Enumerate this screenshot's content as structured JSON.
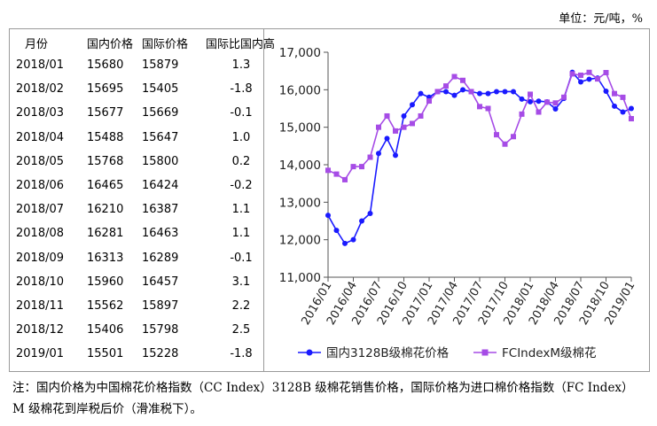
{
  "unit_label": "单位：元/吨，%",
  "table": {
    "headers": [
      "月份",
      "国内价格",
      "国际价格",
      "国际比国内高"
    ],
    "rows": [
      [
        "2018/01",
        "15680",
        "15879",
        "1.3"
      ],
      [
        "2018/02",
        "15695",
        "15405",
        "-1.8"
      ],
      [
        "2018/03",
        "15677",
        "15669",
        "-0.1"
      ],
      [
        "2018/04",
        "15488",
        "15647",
        "1.0"
      ],
      [
        "2018/05",
        "15768",
        "15800",
        "0.2"
      ],
      [
        "2018/06",
        "16465",
        "16424",
        "-0.2"
      ],
      [
        "2018/07",
        "16210",
        "16387",
        "1.1"
      ],
      [
        "2018/08",
        "16281",
        "16463",
        "1.1"
      ],
      [
        "2018/09",
        "16313",
        "16289",
        "-0.1"
      ],
      [
        "2018/10",
        "15960",
        "16457",
        "3.1"
      ],
      [
        "2018/11",
        "15562",
        "15897",
        "2.2"
      ],
      [
        "2018/12",
        "15406",
        "15798",
        "2.5"
      ],
      [
        "2019/01",
        "15501",
        "15228",
        "-1.8"
      ]
    ]
  },
  "note": "注：国内价格为中国棉花价格指数（CC Index）3128B 级棉花销售价格，国际价格为进口棉价格指数（FC Index） M 级棉花到岸税后价（滑准税下）。",
  "chart_data": {
    "type": "line",
    "ylim": [
      11000,
      17000
    ],
    "yticks": [
      "11,000",
      "12,000",
      "13,000",
      "14,000",
      "15,000",
      "16,000",
      "17,000"
    ],
    "ytick_values": [
      11000,
      12000,
      13000,
      14000,
      15000,
      16000,
      17000
    ],
    "x": [
      "2016/01",
      "2016/02",
      "2016/03",
      "2016/04",
      "2016/05",
      "2016/06",
      "2016/07",
      "2016/08",
      "2016/09",
      "2016/10",
      "2016/11",
      "2016/12",
      "2017/01",
      "2017/02",
      "2017/03",
      "2017/04",
      "2017/05",
      "2017/06",
      "2017/07",
      "2017/08",
      "2017/09",
      "2017/10",
      "2017/11",
      "2017/12",
      "2018/01",
      "2018/02",
      "2018/03",
      "2018/04",
      "2018/05",
      "2018/06",
      "2018/07",
      "2018/08",
      "2018/09",
      "2018/10",
      "2018/11",
      "2018/12",
      "2019/01"
    ],
    "xtick_labels": [
      "2016/01",
      "2016/04",
      "2016/07",
      "2016/10",
      "2017/01",
      "2017/04",
      "2017/07",
      "2017/10",
      "2018/01",
      "2018/04",
      "2018/07",
      "2018/10",
      "2019/01"
    ],
    "legend_position": "bottom",
    "grid": false,
    "series": [
      {
        "name": "国内3128B级棉花价格",
        "color": "#1a1aff",
        "marker": "circle",
        "values": [
          12650,
          12250,
          11900,
          12000,
          12500,
          12700,
          14300,
          14700,
          14250,
          15300,
          15600,
          15900,
          15800,
          15950,
          15950,
          15850,
          16000,
          15950,
          15900,
          15900,
          15950,
          15950,
          15950,
          15750,
          15680,
          15695,
          15677,
          15488,
          15768,
          16465,
          16210,
          16281,
          16313,
          15960,
          15562,
          15406,
          15501
        ]
      },
      {
        "name": "FCIndexM级棉花",
        "color": "#a64ce6",
        "marker": "square",
        "values": [
          13850,
          13750,
          13600,
          13950,
          13950,
          14200,
          15000,
          15300,
          14900,
          15000,
          15100,
          15300,
          15700,
          15950,
          16100,
          16350,
          16250,
          15950,
          15550,
          15500,
          14800,
          14550,
          14750,
          15350,
          15879,
          15405,
          15669,
          15647,
          15800,
          16424,
          16387,
          16463,
          16289,
          16457,
          15897,
          15798,
          15228
        ]
      }
    ]
  }
}
